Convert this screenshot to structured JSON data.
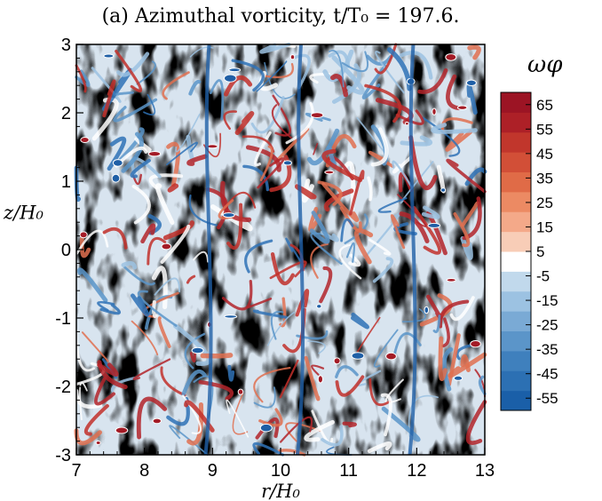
{
  "chart_data": {
    "type": "heatmap",
    "title": "(a) Azimuthal vorticity, t/T₀ = 197.6.",
    "xlabel": "r/H₀",
    "ylabel": "z/H₀",
    "xlim": [
      7,
      13
    ],
    "ylim": [
      -3,
      3
    ],
    "x_ticks": [
      "7",
      "8",
      "9",
      "10",
      "11",
      "12",
      "13"
    ],
    "y_ticks": [
      "-3",
      "-2",
      "-1",
      "0",
      "1",
      "2",
      "3"
    ],
    "colorbar": {
      "label": "ωφ",
      "range": [
        -60,
        70
      ],
      "ticks": [
        "65",
        "55",
        "45",
        "35",
        "25",
        "15",
        "5",
        "-5",
        "-15",
        "-25",
        "-35",
        "-45",
        "-55"
      ],
      "colors": [
        "#1a5fa8",
        "#2c70b3",
        "#3f80bd",
        "#5b95c9",
        "#7aaad5",
        "#9cc2e2",
        "#c1d9ec",
        "#ffffff",
        "#f8cdb7",
        "#f4a989",
        "#ec8a63",
        "#e06b47",
        "#d24f37",
        "#c1362c",
        "#ad2027",
        "#9c1424"
      ]
    }
  }
}
